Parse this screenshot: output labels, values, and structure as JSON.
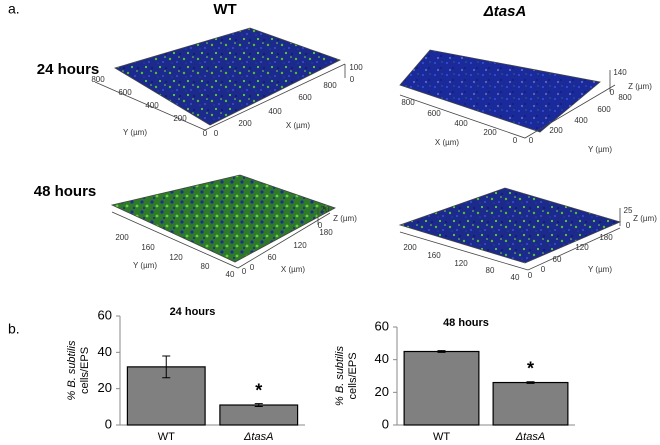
{
  "figure": {
    "panel_a_label": "a.",
    "panel_b_label": "b.",
    "columns": [
      "WT",
      "ΔtasA"
    ],
    "rows": [
      "24 hours",
      "48 hours"
    ],
    "images": [
      {
        "labels": [
          100,
          0,
          800,
          600,
          400,
          200,
          0,
          "Y (µm)",
          0,
          200,
          400,
          600,
          800,
          "X (µm)"
        ]
      },
      {
        "labels": [
          140,
          "Z (µm)",
          0,
          800,
          600,
          400,
          200,
          0,
          "X (µm)",
          0,
          200,
          400,
          600,
          800,
          "Y (µm)"
        ]
      },
      {
        "labels": [
          20,
          "Z (µm)",
          0,
          200,
          160,
          120,
          80,
          40,
          0,
          "Y (µm)",
          0,
          60,
          120,
          180,
          "X (µm)"
        ]
      },
      {
        "labels": [
          25,
          "Z (µm)",
          0,
          200,
          160,
          120,
          80,
          40,
          0,
          0,
          60,
          120,
          180,
          "Y (µm)"
        ]
      }
    ]
  },
  "chart_data": [
    {
      "type": "bar",
      "title": "24 hours",
      "ylabel": [
        "% B. subtilis",
        "cells/EPS"
      ],
      "categories": [
        "WT",
        "ΔtasA"
      ],
      "values": [
        32,
        11
      ],
      "errors": [
        6,
        0.8
      ],
      "annotations": [
        null,
        "*"
      ],
      "color": "#808080",
      "ylim": [
        0,
        60
      ],
      "yticks": [
        0,
        20,
        40,
        60
      ]
    },
    {
      "type": "bar",
      "title": "48 hours",
      "ylabel": [
        "% B. subtilis",
        "cells/EPS"
      ],
      "categories": [
        "WT",
        "ΔtasA"
      ],
      "values": [
        45,
        26
      ],
      "errors": [
        0.5,
        0.5
      ],
      "annotations": [
        null,
        "*"
      ],
      "color": "#808080",
      "ylim": [
        0,
        60
      ],
      "yticks": [
        0,
        20,
        40,
        60
      ]
    }
  ]
}
